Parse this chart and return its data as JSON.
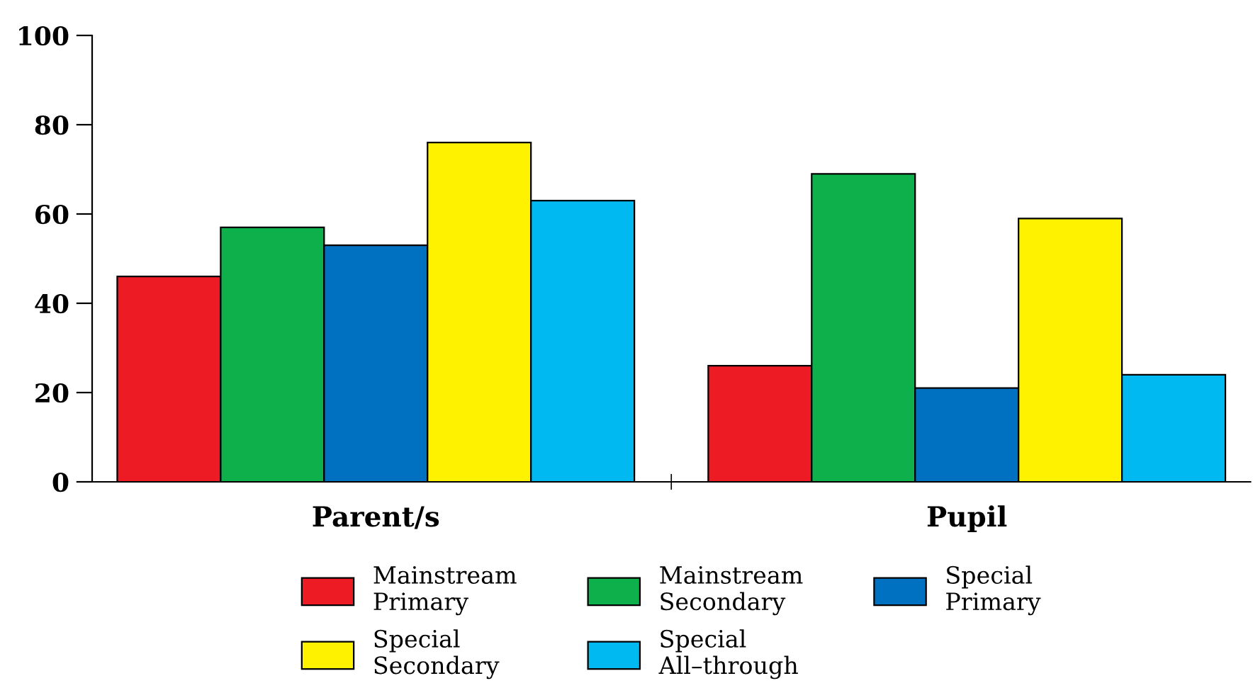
{
  "chart_data": {
    "type": "bar",
    "categories": [
      "Parent/s",
      "Pupil"
    ],
    "series": [
      {
        "name": "Mainstream Primary",
        "color": "#ed1c24",
        "values": [
          46,
          26
        ]
      },
      {
        "name": "Mainstream Secondary",
        "color": "#0db04b",
        "values": [
          57,
          69
        ]
      },
      {
        "name": "Special Primary",
        "color": "#0070c0",
        "values": [
          53,
          21
        ]
      },
      {
        "name": "Special Secondary",
        "color": "#fff200",
        "values": [
          76,
          59
        ]
      },
      {
        "name": "Special All–through",
        "color": "#00b9f1",
        "values": [
          63,
          24
        ]
      }
    ],
    "ylim": [
      0,
      100
    ],
    "yticks": [
      0,
      20,
      40,
      60,
      80,
      100
    ],
    "grid": false,
    "legend": "bottom"
  }
}
